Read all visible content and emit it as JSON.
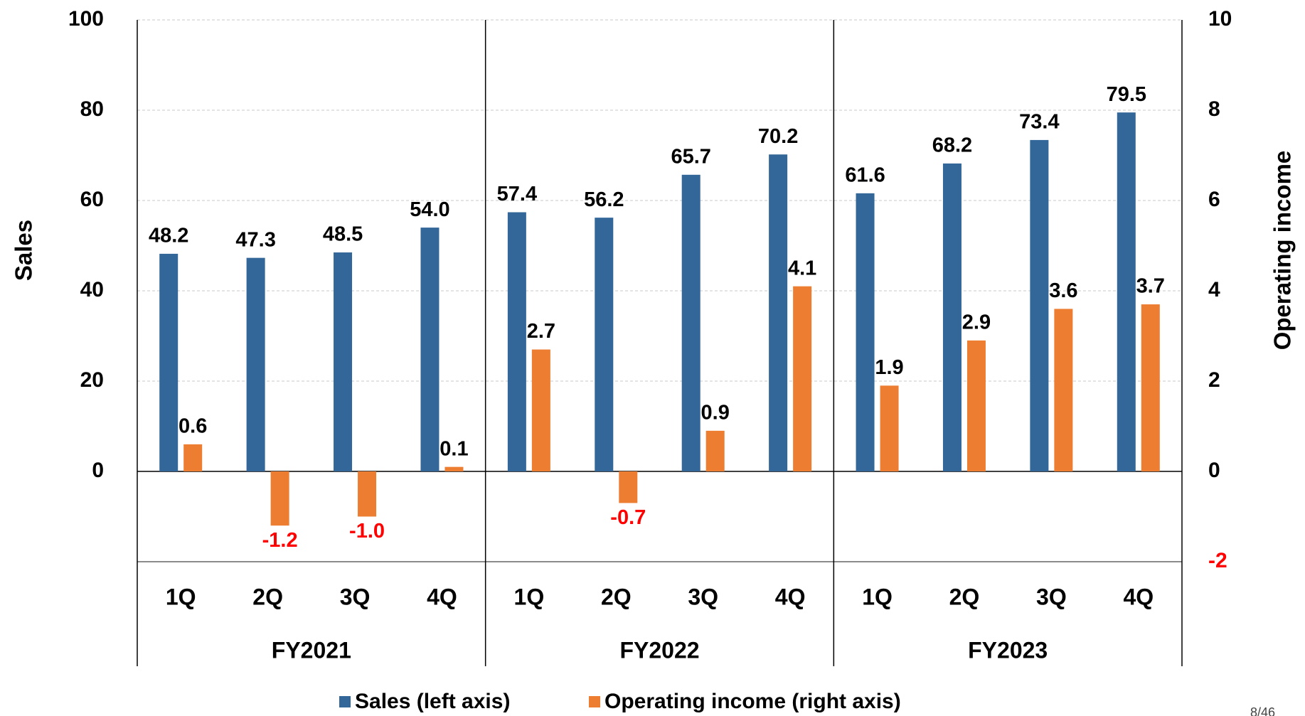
{
  "chart_data": {
    "type": "bar",
    "categories": [
      "1Q",
      "2Q",
      "3Q",
      "4Q",
      "1Q",
      "2Q",
      "3Q",
      "4Q",
      "1Q",
      "2Q",
      "3Q",
      "4Q"
    ],
    "group_labels": [
      "FY2021",
      "FY2022",
      "FY2023"
    ],
    "series": [
      {
        "name": "Sales (left axis)",
        "color": "#336699",
        "values": [
          48.2,
          47.3,
          48.5,
          54.0,
          57.4,
          56.2,
          65.7,
          70.2,
          61.6,
          68.2,
          73.4,
          79.5
        ],
        "value_labels": [
          "48.2",
          "47.3",
          "48.5",
          "54.0",
          "57.4",
          "56.2",
          "65.7",
          "70.2",
          "61.6",
          "68.2",
          "73.4",
          "79.5"
        ]
      },
      {
        "name": "Operating income (right axis)",
        "color": "#ed7d31",
        "axis": "y2",
        "values": [
          0.6,
          -1.2,
          -1.0,
          0.1,
          2.7,
          -0.7,
          0.9,
          4.1,
          1.9,
          2.9,
          3.6,
          3.7
        ],
        "value_labels": [
          "0.6",
          "-1.2",
          "-1.0",
          "0.1",
          "2.7",
          "-0.7",
          "0.9",
          "4.1",
          "1.9",
          "2.9",
          "3.6",
          "3.7"
        ]
      }
    ],
    "y_label": "Sales",
    "y2_label": "Operating income",
    "ylim": [
      -20,
      100
    ],
    "yticks": [
      0,
      20,
      40,
      60,
      80,
      100
    ],
    "y2lim": [
      -2,
      10
    ],
    "y2ticks": [
      -2,
      0,
      2,
      4,
      6,
      8,
      10
    ],
    "grid": true,
    "negative_color": "#ff0000",
    "legend": "bottom"
  },
  "page_number": "8/46"
}
